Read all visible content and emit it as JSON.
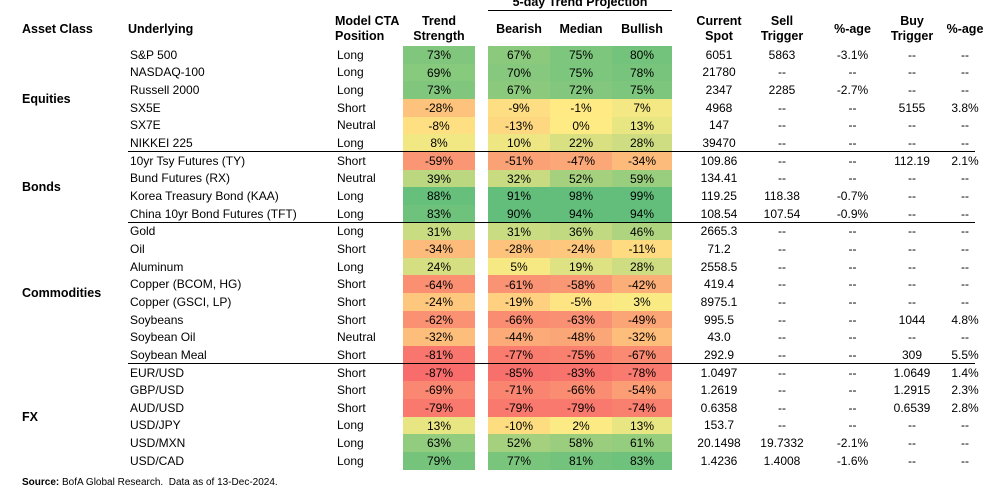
{
  "header": {
    "group_title": "5-day Trend Projection",
    "columns": [
      "Asset Class",
      "Underlying",
      "Model CTA Position",
      "Trend Strength",
      "Bearish",
      "Median",
      "Bullish",
      "Current Spot",
      "Sell Trigger",
      "%-age",
      "Buy Trigger",
      "%-age"
    ]
  },
  "table": {
    "groups": [
      {
        "asset_class": "Equities",
        "rows": [
          [
            "S&P 500",
            "Long",
            "73%",
            "67%",
            "75%",
            "80%",
            "6051",
            "5863",
            "-3.1%",
            "--",
            "--"
          ],
          [
            "NASDAQ-100",
            "Long",
            "69%",
            "70%",
            "75%",
            "78%",
            "21780",
            "--",
            "--",
            "--",
            "--"
          ],
          [
            "Russell 2000",
            "Long",
            "73%",
            "67%",
            "72%",
            "75%",
            "2347",
            "2285",
            "-2.7%",
            "--",
            "--"
          ],
          [
            "SX5E",
            "Short",
            "-28%",
            "-9%",
            "-1%",
            "7%",
            "4968",
            "--",
            "--",
            "5155",
            "3.8%"
          ],
          [
            "SX7E",
            "Neutral",
            "-8%",
            "-13%",
            "0%",
            "13%",
            "147",
            "--",
            "--",
            "--",
            "--"
          ],
          [
            "NIKKEI 225",
            "Long",
            "8%",
            "10%",
            "22%",
            "28%",
            "39470",
            "--",
            "--",
            "--",
            "--"
          ]
        ]
      },
      {
        "asset_class": "Bonds",
        "rows": [
          [
            "10yr Tsy Futures (TY)",
            "Short",
            "-59%",
            "-51%",
            "-47%",
            "-34%",
            "109.86",
            "--",
            "--",
            "112.19",
            "2.1%"
          ],
          [
            "Bund Futures (RX)",
            "Neutral",
            "39%",
            "32%",
            "52%",
            "59%",
            "134.41",
            "--",
            "--",
            "--",
            "--"
          ],
          [
            "Korea Treasury Bond (KAA)",
            "Long",
            "88%",
            "91%",
            "98%",
            "99%",
            "119.25",
            "118.38",
            "-0.7%",
            "--",
            "--"
          ],
          [
            "China 10yr Bond Futures (TFT)",
            "Long",
            "83%",
            "90%",
            "94%",
            "94%",
            "108.54",
            "107.54",
            "-0.9%",
            "--",
            "--"
          ]
        ]
      },
      {
        "asset_class": "Commodities",
        "rows": [
          [
            "Gold",
            "Long",
            "31%",
            "31%",
            "36%",
            "46%",
            "2665.3",
            "--",
            "--",
            "--",
            "--"
          ],
          [
            "Oil",
            "Short",
            "-34%",
            "-28%",
            "-24%",
            "-11%",
            "71.2",
            "--",
            "--",
            "--",
            "--"
          ],
          [
            "Aluminum",
            "Long",
            "24%",
            "5%",
            "19%",
            "28%",
            "2558.5",
            "--",
            "--",
            "--",
            "--"
          ],
          [
            "Copper (BCOM, HG)",
            "Short",
            "-64%",
            "-61%",
            "-58%",
            "-42%",
            "419.4",
            "--",
            "--",
            "--",
            "--"
          ],
          [
            "Copper (GSCI, LP)",
            "Short",
            "-24%",
            "-19%",
            "-5%",
            "3%",
            "8975.1",
            "--",
            "--",
            "--",
            "--"
          ],
          [
            "Soybeans",
            "Short",
            "-62%",
            "-66%",
            "-63%",
            "-49%",
            "995.5",
            "--",
            "--",
            "1044",
            "4.8%"
          ],
          [
            "Soybean Oil",
            "Neutral",
            "-32%",
            "-44%",
            "-48%",
            "-32%",
            "43.0",
            "--",
            "--",
            "--",
            "--"
          ],
          [
            "Soybean Meal",
            "Short",
            "-81%",
            "-77%",
            "-75%",
            "-67%",
            "292.9",
            "--",
            "--",
            "309",
            "5.5%"
          ]
        ]
      },
      {
        "asset_class": "FX",
        "rows": [
          [
            "EUR/USD",
            "Short",
            "-87%",
            "-85%",
            "-83%",
            "-78%",
            "1.0497",
            "--",
            "--",
            "1.0649",
            "1.4%"
          ],
          [
            "GBP/USD",
            "Short",
            "-69%",
            "-71%",
            "-66%",
            "-54%",
            "1.2619",
            "--",
            "--",
            "1.2915",
            "2.3%"
          ],
          [
            "AUD/USD",
            "Short",
            "-79%",
            "-79%",
            "-79%",
            "-74%",
            "0.6358",
            "--",
            "--",
            "0.6539",
            "2.8%"
          ],
          [
            "USD/JPY",
            "Long",
            "13%",
            "-10%",
            "2%",
            "13%",
            "153.7",
            "--",
            "--",
            "--",
            "--"
          ],
          [
            "USD/MXN",
            "Long",
            "63%",
            "52%",
            "58%",
            "61%",
            "20.1498",
            "19.7332",
            "-2.1%",
            "--",
            "--"
          ],
          [
            "USD/CAD",
            "Long",
            "79%",
            "77%",
            "81%",
            "83%",
            "1.4236",
            "1.4008",
            "-1.6%",
            "--",
            "--"
          ]
        ]
      }
    ]
  },
  "footer": {
    "source_label": "Source:",
    "source_text": " BofA Global Research.  Data as of 13-Dec-2024."
  }
}
